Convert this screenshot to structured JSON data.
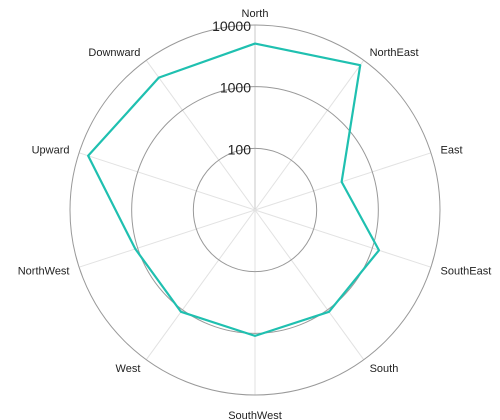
{
  "chart_data": {
    "type": "line",
    "chart_form": "radar",
    "categories": [
      "North",
      "NorthEast",
      "East",
      "SouthEast",
      "South",
      "SouthWest",
      "West",
      "NorthWest",
      "Upward",
      "Downward"
    ],
    "series": [
      {
        "values": [
          5000,
          8000,
          300,
          1300,
          1100,
          1100,
          1100,
          1100,
          7000,
          4500
        ]
      }
    ],
    "radial_axis": {
      "scale": "log",
      "range": [
        10,
        10000
      ],
      "ticks": [
        100,
        1000,
        10000
      ],
      "tick_labels": [
        "100",
        "1000",
        "10000"
      ]
    },
    "grid": true,
    "legend": false,
    "series_color": "#1fc0b0",
    "grid_color": "#999999",
    "spoke_color": "#e2e2e2"
  }
}
